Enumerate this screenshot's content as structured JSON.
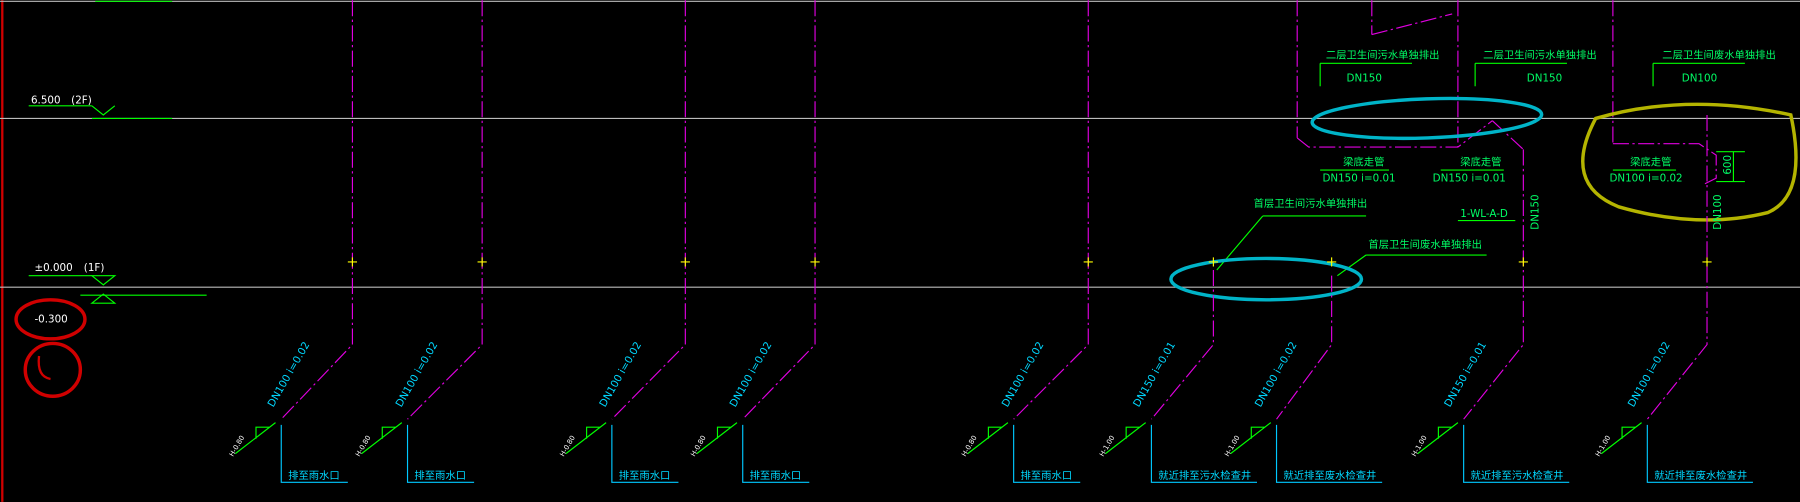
{
  "levels": [
    {
      "elevation": "6.500",
      "floor": "(2F)"
    },
    {
      "elevation": "±0.000",
      "floor": "(1F)"
    }
  ],
  "ground_level": "-0.300",
  "upper_notes": [
    {
      "title": "二层卫生间污水单独排出",
      "size": "DN150",
      "route": "梁底走管",
      "slope": "DN150 i=0.01"
    },
    {
      "title": "二层卫生间污水单独排出",
      "size": "DN150",
      "route": "梁底走管",
      "slope": "DN150 i=0.01"
    },
    {
      "title": "二层卫生间废水单独排出",
      "size": "DN100",
      "route": "梁底走管",
      "slope": "DN100 i=0.02"
    }
  ],
  "riser_labels": [
    "DN150",
    "DN100"
  ],
  "pipe_tag": "1-WL-A-D",
  "dimension": "600",
  "ground_notes": [
    "首层卫生间污水单独排出",
    "首层卫生间废水单独排出"
  ],
  "outlets": [
    {
      "slope": "DN100 i=0.02",
      "depth": "H-0.80",
      "destination": "排至雨水口"
    },
    {
      "slope": "DN100 i=0.02",
      "depth": "H-0.80",
      "destination": "排至雨水口"
    },
    {
      "slope": "DN100 i=0.02",
      "depth": "H-0.80",
      "destination": "排至雨水口"
    },
    {
      "slope": "DN100 i=0.02",
      "depth": "H-0.80",
      "destination": "排至雨水口"
    },
    {
      "slope": "DN100 i=0.02",
      "depth": "H-0.80",
      "destination": "排至雨水口"
    },
    {
      "slope": "DN150 i=0.01",
      "depth": "H-1.00",
      "destination": "就近排至污水检查井"
    },
    {
      "slope": "DN100 i=0.02",
      "depth": "H-1.00",
      "destination": "就近排至废水检查井"
    },
    {
      "slope": "DN150 i=0.01",
      "depth": "H-1.00",
      "destination": "就近排至污水检查井"
    },
    {
      "slope": "DN100 i=0.02",
      "depth": "H-1.00",
      "destination": "就近排至废水检查井"
    }
  ]
}
